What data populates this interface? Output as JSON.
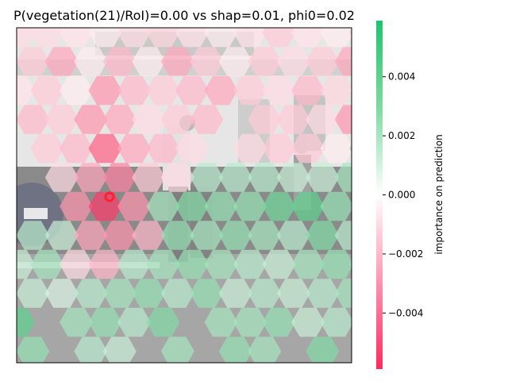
{
  "chart_data": {
    "type": "heatmap",
    "title": "P(vegetation(21)/RoI)=0.00 vs shap=0.01, phi0=0.02",
    "background": "semi-transparent street photo with pedestrians (grayscale)",
    "overlay": "hexagonal superpixel SHAP importance map",
    "colorbar": {
      "label": "importance on prediction",
      "range": [
        -0.0059,
        0.0059
      ],
      "ticks": [
        0.004,
        0.002,
        0.0,
        -0.002,
        -0.004
      ],
      "tick_labels": [
        "0.004",
        "0.002",
        "0.000",
        "−0.002",
        "−0.004"
      ],
      "colors": {
        "negative": "#ff2d5f",
        "zero": "#ffffff",
        "positive": "#2ec46b"
      }
    },
    "roi_marker": {
      "shape": "ring",
      "color": "#ff1f2f"
    },
    "hex_grid": {
      "cols": 13,
      "rows": 12,
      "values": [
        [
          -0.001,
          -0.001,
          -0.0008,
          -0.0005,
          -0.001,
          -0.0012,
          -0.0008,
          -0.0005,
          -0.0008,
          -0.0015,
          -0.0008,
          -0.0005,
          -0.0015
        ],
        [
          -0.0015,
          -0.0025,
          -0.0005,
          -0.002,
          -0.0005,
          -0.0025,
          -0.0015,
          -0.0005,
          -0.0015,
          -0.001,
          -0.0015,
          -0.0025,
          -0.0008
        ],
        [
          -0.0008,
          -0.0015,
          -0.0005,
          -0.003,
          -0.002,
          -0.0015,
          -0.002,
          -0.0025,
          -0.0015,
          -0.001,
          -0.002,
          -0.0012,
          -0.0005
        ],
        [
          -0.002,
          -0.0015,
          -0.003,
          -0.0025,
          -0.001,
          -0.0015,
          -0.002,
          0,
          -0.0015,
          -0.0015,
          -0.001,
          -0.003,
          -0.0005
        ],
        [
          0,
          -0.0015,
          -0.002,
          -0.0045,
          -0.0025,
          -0.002,
          -0.001,
          0,
          -0.001,
          -0.0015,
          -0.0015,
          -0.0005,
          0.003
        ],
        [
          0,
          -0.001,
          -0.0025,
          -0.0035,
          -0.0015,
          -0.001,
          0.002,
          0.002,
          0.002,
          0.0015,
          0.0015,
          0.0025,
          0
        ],
        [
          0,
          0,
          -0.003,
          -0.0055,
          -0.003,
          0.0025,
          0.0035,
          0.003,
          0.003,
          0.004,
          0.0045,
          0.003,
          0
        ],
        [
          0.002,
          0.0015,
          -0.0025,
          -0.003,
          -0.002,
          0.003,
          0.0025,
          0.003,
          0.0025,
          0.002,
          0.0035,
          0.002,
          0.002
        ],
        [
          0.0015,
          0.0025,
          -0.001,
          -0.002,
          0.002,
          0.0025,
          0.003,
          0.0025,
          0.002,
          0.0015,
          0.0025,
          0.003,
          0.0025
        ],
        [
          0.0015,
          0.001,
          0.002,
          0.0025,
          0.003,
          0.002,
          0.003,
          0.0015,
          0.002,
          0.0015,
          0.002,
          0.0025,
          0.001
        ],
        [
          0.0045,
          0,
          0.0025,
          0.003,
          0.002,
          0.0035,
          0,
          0.0025,
          0.0025,
          0.003,
          0.0015,
          0.002,
          0
        ],
        [
          0.003,
          0,
          0.002,
          0.0015,
          0,
          0.0025,
          0,
          0.003,
          0.0025,
          0,
          0.0035,
          0,
          0
        ]
      ]
    },
    "xticks": [],
    "yticks": []
  }
}
